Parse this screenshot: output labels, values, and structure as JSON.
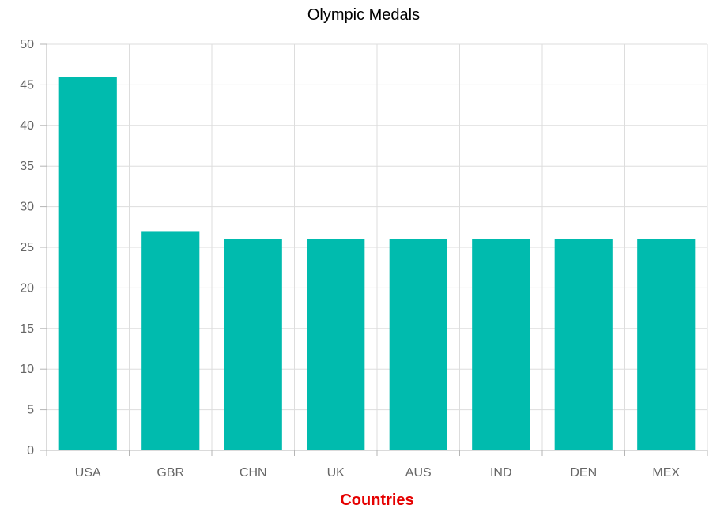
{
  "chart_data": {
    "type": "bar",
    "title": "Olympic Medals",
    "xlabel": "Countries",
    "ylabel": "",
    "categories": [
      "USA",
      "GBR",
      "CHN",
      "UK",
      "AUS",
      "IND",
      "DEN",
      "MEX"
    ],
    "values": [
      46,
      27,
      26,
      26,
      26,
      26,
      26,
      26
    ],
    "ylim": [
      0,
      50
    ],
    "yticks": [
      "0",
      "5",
      "10",
      "15",
      "20",
      "25",
      "30",
      "35",
      "40",
      "45",
      "50"
    ],
    "grid": true,
    "legend": "none"
  },
  "colors": {
    "bar": "#00bbae",
    "xlabel": "#e50000"
  }
}
